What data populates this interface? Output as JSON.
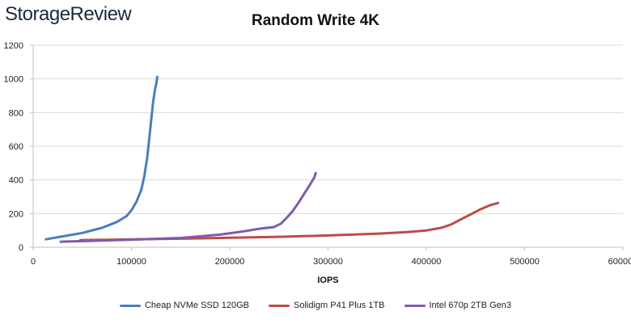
{
  "brand": "StorageReview",
  "colors": {
    "cheap": "#4a7ebb",
    "solidigm": "#be4b48",
    "intel": "#7e5ca8",
    "grid": "#d9d9d9",
    "axis": "#bfbfbf"
  },
  "chart_data": {
    "type": "line",
    "title": "Random Write 4K",
    "xlabel": "IOPS",
    "ylabel": "",
    "xlim": [
      0,
      600000
    ],
    "ylim": [
      0,
      1200
    ],
    "xticks": [
      0,
      100000,
      200000,
      300000,
      400000,
      500000,
      600000
    ],
    "yticks": [
      0,
      200,
      400,
      600,
      800,
      1000,
      1200
    ],
    "grid": "horizontal",
    "legend_position": "bottom",
    "series": [
      {
        "name": "Cheap NVMe SSD 120GB",
        "color": "#4a7ebb",
        "x": [
          13000,
          30000,
          50000,
          70000,
          85000,
          95000,
          100000,
          105000,
          110000,
          113000,
          116000,
          118000,
          120000,
          122000,
          124000,
          125500,
          126000,
          126200
        ],
        "y": [
          47,
          65,
          85,
          115,
          150,
          185,
          220,
          270,
          340,
          420,
          530,
          640,
          750,
          860,
          940,
          980,
          1000,
          1012
        ]
      },
      {
        "name": "Solidigm P41 Plus 1TB",
        "color": "#be4b48",
        "x": [
          48000,
          100000,
          150000,
          200000,
          250000,
          300000,
          350000,
          380000,
          400000,
          415000,
          425000,
          435000,
          445000,
          455000,
          465000,
          473000
        ],
        "y": [
          42,
          47,
          51,
          56,
          62,
          70,
          80,
          90,
          100,
          115,
          135,
          165,
          195,
          225,
          250,
          263
        ]
      },
      {
        "name": "Intel 670p 2TB Gen3",
        "color": "#7e5ca8",
        "x": [
          28000,
          60000,
          100000,
          150000,
          190000,
          215000,
          230000,
          245000,
          252000,
          258000,
          264000,
          270000,
          276000,
          282000,
          286000,
          287500
        ],
        "y": [
          33,
          38,
          45,
          55,
          75,
          95,
          110,
          120,
          140,
          175,
          215,
          265,
          320,
          375,
          415,
          440
        ]
      }
    ]
  }
}
